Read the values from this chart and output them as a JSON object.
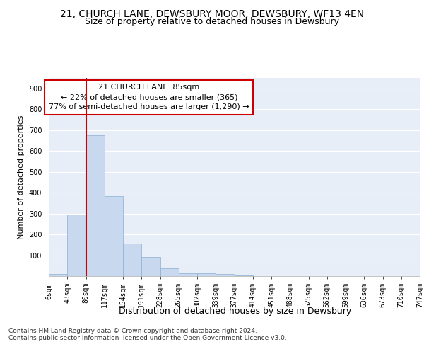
{
  "title": "21, CHURCH LANE, DEWSBURY MOOR, DEWSBURY, WF13 4EN",
  "subtitle": "Size of property relative to detached houses in Dewsbury",
  "xlabel": "Distribution of detached houses by size in Dewsbury",
  "ylabel": "Number of detached properties",
  "bar_values": [
    10,
    295,
    675,
    385,
    155,
    90,
    37,
    15,
    15,
    11,
    5,
    0,
    0,
    0,
    0,
    0,
    0,
    0,
    0,
    0
  ],
  "bar_labels": [
    "6sqm",
    "43sqm",
    "80sqm",
    "117sqm",
    "154sqm",
    "191sqm",
    "228sqm",
    "265sqm",
    "302sqm",
    "339sqm",
    "377sqm",
    "414sqm",
    "451sqm",
    "488sqm",
    "525sqm",
    "562sqm",
    "599sqm",
    "636sqm",
    "673sqm",
    "710sqm",
    "747sqm"
  ],
  "bar_color": "#c8d9ef",
  "bar_edge_color": "#8ab0d4",
  "vline_color": "#cc0000",
  "annotation_line1": "21 CHURCH LANE: 85sqm",
  "annotation_line2": "← 22% of detached houses are smaller (365)",
  "annotation_line3": "77% of semi-detached houses are larger (1,290) →",
  "annotation_box_color": "#cc0000",
  "ylim": [
    0,
    950
  ],
  "yticks": [
    0,
    100,
    200,
    300,
    400,
    500,
    600,
    700,
    800,
    900
  ],
  "background_color": "#e8eef8",
  "footer_text": "Contains HM Land Registry data © Crown copyright and database right 2024.\nContains public sector information licensed under the Open Government Licence v3.0.",
  "title_fontsize": 10,
  "subtitle_fontsize": 9,
  "xlabel_fontsize": 9,
  "ylabel_fontsize": 8,
  "annotation_fontsize": 8,
  "footer_fontsize": 6.5,
  "tick_fontsize": 7
}
